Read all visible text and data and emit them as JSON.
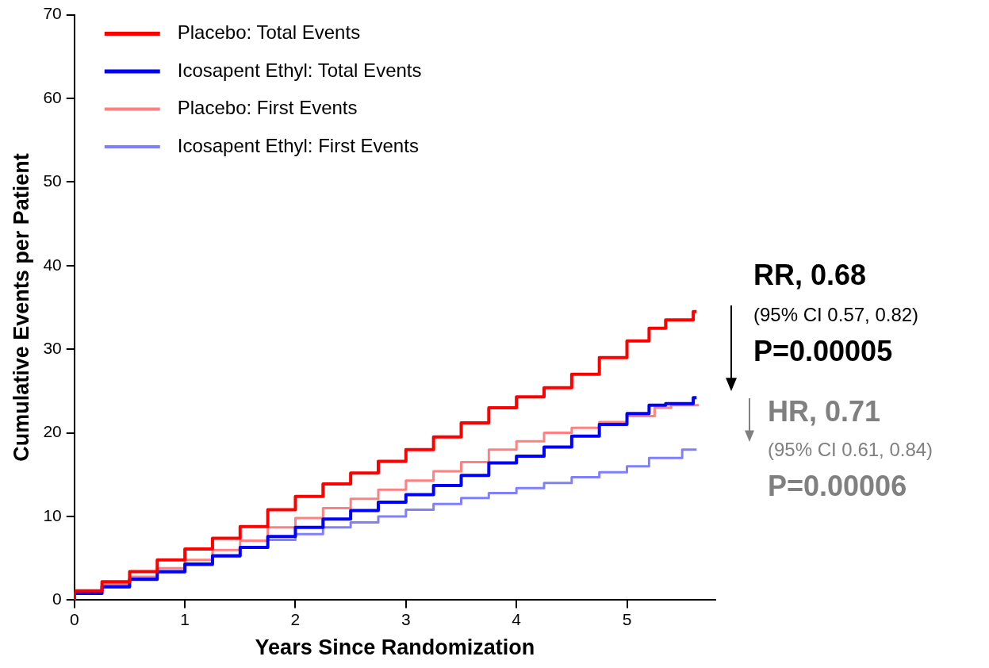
{
  "chart_data": {
    "type": "step",
    "xlabel": "Years Since Randomization",
    "ylabel": "Cumulative Events per Patient",
    "xlim": [
      0,
      5.8
    ],
    "xticks": [
      0,
      1,
      2,
      3,
      4,
      5
    ],
    "ylim": [
      0,
      70
    ],
    "yticks": [
      0,
      10,
      20,
      30,
      40,
      50,
      60,
      70
    ],
    "grid": false,
    "legend": "top left",
    "marker": "none",
    "line_style": "solid",
    "series": [
      {
        "name": "Placebo: Total Events",
        "color": "#ff0000",
        "x": [
          0,
          0.25,
          0.5,
          0.75,
          1,
          1.25,
          1.5,
          1.75,
          2,
          2.25,
          2.5,
          2.75,
          3,
          3.25,
          3.5,
          3.75,
          4,
          4.25,
          4.5,
          4.75,
          5,
          5.2,
          5.35,
          5.5,
          5.6,
          5.63
        ],
        "values": [
          0,
          1.1,
          2.2,
          3.4,
          4.8,
          6.1,
          7.4,
          8.8,
          10.8,
          12.4,
          13.9,
          15.2,
          16.6,
          18,
          19.5,
          21.2,
          23,
          24.3,
          25.4,
          27,
          29,
          31,
          32.5,
          33.5,
          33.5,
          34.5
        ]
      },
      {
        "name": "Icosapent Ethyl: Total Events",
        "color": "#0000ff",
        "x": [
          0,
          0.25,
          0.5,
          0.75,
          1,
          1.25,
          1.5,
          1.75,
          2,
          2.25,
          2.5,
          2.75,
          3,
          3.25,
          3.5,
          3.75,
          4,
          4.25,
          4.5,
          4.75,
          5,
          5.2,
          5.35,
          5.5,
          5.6,
          5.63
        ],
        "values": [
          0,
          0.8,
          1.6,
          2.5,
          3.4,
          4.3,
          5.3,
          6.3,
          7.6,
          8.7,
          9.7,
          10.7,
          11.7,
          12.6,
          13.7,
          14.9,
          16.4,
          17.2,
          18.3,
          19.6,
          21,
          22.3,
          23.3,
          23.5,
          23.5,
          24.2
        ]
      },
      {
        "name": "Placebo: First Events",
        "color": "#ff8080",
        "x": [
          0,
          0.25,
          0.5,
          0.75,
          1,
          1.25,
          1.5,
          1.75,
          2,
          2.25,
          2.5,
          2.75,
          3,
          3.25,
          3.5,
          3.75,
          4,
          4.25,
          4.5,
          4.75,
          5,
          5.25,
          5.4,
          5.5,
          5.65
        ],
        "values": [
          0,
          0.9,
          1.9,
          2.8,
          3.8,
          4.8,
          6,
          7.1,
          8.7,
          9.8,
          11,
          12.1,
          13.2,
          14.3,
          15.4,
          16.5,
          18,
          19,
          20,
          20.6,
          21.3,
          22,
          23,
          23.3,
          23.3
        ]
      },
      {
        "name": "Icosapent Ethyl: First Events",
        "color": "#8080ff",
        "x": [
          0,
          0.25,
          0.5,
          0.75,
          1,
          1.25,
          1.5,
          1.75,
          2,
          2.25,
          2.5,
          2.75,
          3,
          3.25,
          3.5,
          3.75,
          4,
          4.25,
          4.5,
          4.75,
          5,
          5.2,
          5.35,
          5.5,
          5.63
        ],
        "values": [
          0,
          0.8,
          1.5,
          2.4,
          3.3,
          4.2,
          5.2,
          6.3,
          7.2,
          7.9,
          8.7,
          9.3,
          10,
          10.8,
          11.5,
          12.2,
          12.8,
          13.4,
          14,
          14.7,
          15.3,
          16,
          17,
          17,
          18
        ]
      }
    ],
    "annotations": [
      "RR, 0.68",
      "(95% CI 0.57, 0.82)",
      "P=0.00005",
      "HR, 0.71",
      "(95% CI 0.61, 0.84)",
      "P=0.00006"
    ]
  }
}
